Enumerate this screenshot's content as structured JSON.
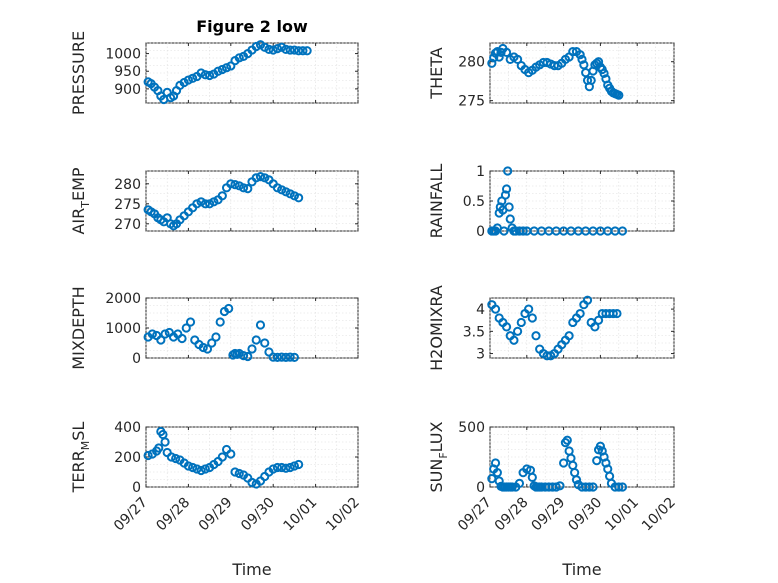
{
  "chart_data": [
    {
      "type": "scatter",
      "title": "Figure 2 low",
      "xlabel": "",
      "ylabel": "PRESSURE",
      "xlim": [
        "09/27",
        "10/02"
      ],
      "ylim": [
        860,
        1030
      ],
      "yticks": [
        "900",
        "950",
        "1000"
      ],
      "xticks": [
        "09/27",
        "09/28",
        "09/29",
        "09/30",
        "10/01",
        "10/02"
      ],
      "grid": true,
      "marker": "circle",
      "color": "#0072bd",
      "series": [
        {
          "name": "PRESSURE",
          "days": [
            0.05,
            0.12,
            0.2,
            0.28,
            0.35,
            0.42,
            0.5,
            0.58,
            0.65,
            0.72,
            0.8,
            0.9,
            1.0,
            1.1,
            1.2,
            1.3,
            1.4,
            1.5,
            1.6,
            1.7,
            1.8,
            1.9,
            2.0,
            2.1,
            2.2,
            2.3,
            2.4,
            2.5,
            2.6,
            2.7,
            2.8,
            2.9,
            3.0,
            3.1,
            3.2,
            3.3,
            3.4,
            3.5,
            3.6,
            3.7,
            3.8
          ],
          "values": [
            920,
            915,
            905,
            895,
            880,
            870,
            890,
            875,
            880,
            895,
            910,
            918,
            925,
            930,
            935,
            945,
            940,
            938,
            942,
            950,
            955,
            960,
            965,
            980,
            988,
            992,
            1000,
            1010,
            1020,
            1025,
            1018,
            1012,
            1010,
            1014,
            1018,
            1012,
            1010,
            1010,
            1008,
            1008,
            1008
          ]
        }
      ]
    },
    {
      "type": "scatter",
      "title": "",
      "xlabel": "",
      "ylabel": "THETA",
      "xlim": [
        "09/27",
        "10/02"
      ],
      "ylim": [
        274.7,
        282.4
      ],
      "yticks": [
        "275",
        "280"
      ],
      "xticks": [
        "09/27",
        "09/28",
        "09/29",
        "09/30",
        "10/01",
        "10/02"
      ],
      "grid": true,
      "marker": "circle",
      "color": "#0072bd",
      "series": [
        {
          "name": "THETA",
          "days": [
            0.05,
            0.1,
            0.15,
            0.2,
            0.25,
            0.3,
            0.35,
            0.45,
            0.55,
            0.65,
            0.75,
            0.85,
            0.95,
            1.05,
            1.15,
            1.25,
            1.35,
            1.45,
            1.55,
            1.65,
            1.75,
            1.85,
            1.95,
            2.05,
            2.15,
            2.25,
            2.35,
            2.45,
            2.5,
            2.55,
            2.6,
            2.65,
            2.7,
            2.75,
            2.8,
            2.85,
            2.9,
            2.95,
            3.0,
            3.05,
            3.1,
            3.15,
            3.2,
            3.25,
            3.3,
            3.35,
            3.4,
            3.45,
            3.5
          ],
          "values": [
            279.8,
            280.5,
            281.1,
            281.3,
            280.6,
            281.2,
            281.7,
            281.2,
            280.3,
            280.6,
            280.3,
            279.5,
            279.0,
            278.6,
            278.9,
            279.3,
            279.6,
            279.9,
            279.9,
            279.7,
            279.5,
            279.5,
            279.8,
            280.3,
            280.6,
            281.3,
            281.3,
            280.9,
            280.3,
            279.6,
            278.6,
            277.6,
            276.8,
            277.6,
            278.8,
            279.6,
            279.8,
            280.0,
            279.3,
            279.0,
            278.5,
            277.8,
            277.0,
            276.6,
            276.2,
            276.0,
            275.9,
            275.8,
            275.7
          ]
        }
      ]
    },
    {
      "type": "scatter",
      "title": "",
      "xlabel": "",
      "ylabel": "AIR",
      "ylabel_sub": "T",
      "ylabel_tail": "EMP",
      "xlim": [
        "09/27",
        "10/02"
      ],
      "ylim": [
        268.2,
        283.2
      ],
      "yticks": [
        "270",
        "275",
        "280"
      ],
      "xticks": [
        "09/27",
        "09/28",
        "09/29",
        "09/30",
        "10/01",
        "10/02"
      ],
      "grid": true,
      "marker": "circle",
      "color": "#0072bd",
      "series": [
        {
          "name": "AIR_TEMP",
          "days": [
            0.05,
            0.12,
            0.2,
            0.28,
            0.35,
            0.42,
            0.5,
            0.58,
            0.65,
            0.72,
            0.8,
            0.9,
            1.0,
            1.1,
            1.2,
            1.3,
            1.4,
            1.5,
            1.6,
            1.7,
            1.8,
            1.9,
            2.0,
            2.1,
            2.2,
            2.3,
            2.4,
            2.5,
            2.6,
            2.7,
            2.8,
            2.9,
            3.0,
            3.1,
            3.2,
            3.3,
            3.4,
            3.5,
            3.6
          ],
          "values": [
            273.5,
            273.0,
            272.5,
            271.5,
            271.0,
            270.5,
            271.5,
            270.0,
            269.5,
            270.0,
            271.0,
            272.0,
            273.0,
            274.0,
            275.0,
            275.5,
            275.0,
            275.0,
            275.5,
            276.0,
            277.0,
            279.0,
            280.0,
            279.8,
            279.5,
            279.0,
            278.8,
            280.5,
            281.5,
            281.8,
            281.5,
            281.0,
            280.0,
            279.0,
            278.5,
            278.0,
            277.5,
            277.0,
            276.5
          ]
        }
      ]
    },
    {
      "type": "scatter",
      "title": "",
      "xlabel": "",
      "ylabel": "RAINFALL",
      "xlim": [
        "09/27",
        "10/02"
      ],
      "ylim": [
        0,
        1
      ],
      "yticks": [
        "0",
        "0.5",
        "1"
      ],
      "xticks": [
        "09/27",
        "09/28",
        "09/29",
        "09/30",
        "10/01",
        "10/02"
      ],
      "grid": true,
      "marker": "circle",
      "color": "#0072bd",
      "series": [
        {
          "name": "RAINFALL",
          "days": [
            0.05,
            0.1,
            0.15,
            0.2,
            0.25,
            0.28,
            0.32,
            0.35,
            0.38,
            0.42,
            0.45,
            0.48,
            0.52,
            0.55,
            0.6,
            0.65,
            0.7,
            0.8,
            0.9,
            1.0,
            1.2,
            1.4,
            1.6,
            1.8,
            2.0,
            2.2,
            2.4,
            2.6,
            2.8,
            3.0,
            3.2,
            3.4,
            3.6
          ],
          "values": [
            0,
            0,
            0,
            0.05,
            0.3,
            0.4,
            0.5,
            0.35,
            0.0,
            0.6,
            0.7,
            1.0,
            0.4,
            0.2,
            0.05,
            0,
            0,
            0,
            0,
            0,
            0,
            0,
            0,
            0,
            0,
            0,
            0,
            0,
            0,
            0,
            0,
            0,
            0
          ]
        }
      ]
    },
    {
      "type": "scatter",
      "title": "",
      "xlabel": "",
      "ylabel": "MIXDEPTH",
      "xlim": [
        "09/27",
        "10/02"
      ],
      "ylim": [
        0,
        2000
      ],
      "yticks": [
        "0",
        "1000",
        "2000"
      ],
      "xticks": [
        "09/27",
        "09/28",
        "09/29",
        "09/30",
        "10/01",
        "10/02"
      ],
      "grid": true,
      "marker": "circle",
      "color": "#0072bd",
      "series": [
        {
          "name": "MIXDEPTH",
          "days": [
            0.05,
            0.15,
            0.25,
            0.35,
            0.45,
            0.55,
            0.65,
            0.75,
            0.85,
            0.95,
            1.05,
            1.15,
            1.25,
            1.35,
            1.45,
            1.55,
            1.65,
            1.75,
            1.85,
            1.95,
            2.05,
            2.1,
            2.15,
            2.2,
            2.3,
            2.4,
            2.5,
            2.6,
            2.7,
            2.8,
            2.9,
            3.0,
            3.1,
            3.2,
            3.3,
            3.4,
            3.5
          ],
          "values": [
            700,
            800,
            750,
            600,
            800,
            850,
            700,
            800,
            650,
            1000,
            1200,
            600,
            450,
            350,
            300,
            500,
            700,
            1200,
            1550,
            1650,
            100,
            150,
            120,
            150,
            80,
            50,
            300,
            600,
            1100,
            500,
            200,
            30,
            20,
            30,
            20,
            30,
            20
          ]
        }
      ]
    },
    {
      "type": "scatter",
      "title": "",
      "xlabel": "",
      "ylabel": "H2OMIXRA",
      "xlim": [
        "09/27",
        "10/02"
      ],
      "ylim": [
        2.9,
        4.25
      ],
      "yticks": [
        "3",
        "3.5",
        "4"
      ],
      "xticks": [
        "09/27",
        "09/28",
        "09/29",
        "09/30",
        "10/01",
        "10/02"
      ],
      "grid": true,
      "marker": "circle",
      "color": "#0072bd",
      "series": [
        {
          "name": "H2OMIXRA",
          "days": [
            0.05,
            0.15,
            0.25,
            0.35,
            0.45,
            0.55,
            0.65,
            0.75,
            0.85,
            0.95,
            1.05,
            1.15,
            1.25,
            1.35,
            1.45,
            1.55,
            1.65,
            1.75,
            1.85,
            1.95,
            2.05,
            2.15,
            2.25,
            2.35,
            2.45,
            2.55,
            2.65,
            2.75,
            2.85,
            2.95,
            3.05,
            3.15,
            3.25,
            3.35,
            3.45
          ],
          "values": [
            4.1,
            4.0,
            3.8,
            3.7,
            3.6,
            3.4,
            3.3,
            3.5,
            3.7,
            3.9,
            4.0,
            3.8,
            3.4,
            3.1,
            3.0,
            2.95,
            2.95,
            3.0,
            3.1,
            3.2,
            3.3,
            3.4,
            3.7,
            3.8,
            3.9,
            4.1,
            4.2,
            3.7,
            3.6,
            3.75,
            3.9,
            3.9,
            3.9,
            3.9,
            3.9
          ]
        }
      ]
    },
    {
      "type": "scatter",
      "title": "",
      "xlabel": "Time",
      "ylabel": "TERR",
      "ylabel_sub": "M",
      "ylabel_tail": "SL",
      "xlim": [
        "09/27",
        "10/02"
      ],
      "ylim": [
        0,
        400
      ],
      "yticks": [
        "0",
        "200",
        "400"
      ],
      "xticks": [
        "09/27",
        "09/28",
        "09/29",
        "09/30",
        "10/01",
        "10/02"
      ],
      "grid": true,
      "marker": "circle",
      "color": "#0072bd",
      "series": [
        {
          "name": "TERR_MSL",
          "days": [
            0.05,
            0.15,
            0.25,
            0.3,
            0.35,
            0.4,
            0.45,
            0.5,
            0.6,
            0.7,
            0.8,
            0.9,
            1.0,
            1.1,
            1.2,
            1.3,
            1.4,
            1.5,
            1.6,
            1.7,
            1.8,
            1.9,
            2.0,
            2.1,
            2.2,
            2.3,
            2.4,
            2.5,
            2.6,
            2.7,
            2.8,
            2.9,
            3.0,
            3.1,
            3.2,
            3.3,
            3.4,
            3.5,
            3.6
          ],
          "values": [
            210,
            220,
            240,
            260,
            370,
            350,
            300,
            230,
            200,
            190,
            180,
            160,
            140,
            130,
            120,
            110,
            120,
            130,
            150,
            170,
            200,
            250,
            220,
            100,
            90,
            80,
            60,
            30,
            20,
            40,
            70,
            100,
            120,
            130,
            130,
            125,
            130,
            140,
            150
          ]
        }
      ]
    },
    {
      "type": "scatter",
      "title": "",
      "xlabel": "Time",
      "ylabel": "SUN",
      "ylabel_sub": "F",
      "ylabel_tail": "LUX",
      "xlim": [
        "09/27",
        "10/02"
      ],
      "ylim": [
        0,
        500
      ],
      "yticks": [
        "0",
        "500"
      ],
      "xticks": [
        "09/27",
        "09/28",
        "09/29",
        "09/30",
        "10/01",
        "10/02"
      ],
      "grid": true,
      "marker": "circle",
      "color": "#0072bd",
      "series": [
        {
          "name": "SUN_FLUX",
          "days": [
            0.05,
            0.1,
            0.15,
            0.2,
            0.25,
            0.3,
            0.35,
            0.4,
            0.45,
            0.5,
            0.55,
            0.6,
            0.7,
            0.8,
            0.9,
            1.0,
            1.1,
            1.15,
            1.2,
            1.25,
            1.3,
            1.35,
            1.4,
            1.5,
            1.6,
            1.7,
            1.8,
            1.9,
            2.0,
            2.05,
            2.1,
            2.15,
            2.2,
            2.25,
            2.3,
            2.35,
            2.4,
            2.5,
            2.6,
            2.7,
            2.8,
            2.9,
            2.95,
            3.0,
            3.05,
            3.1,
            3.15,
            3.2,
            3.25,
            3.3,
            3.4,
            3.5,
            3.6
          ],
          "values": [
            70,
            150,
            200,
            120,
            50,
            5,
            0,
            0,
            0,
            0,
            0,
            0,
            0,
            30,
            120,
            150,
            140,
            80,
            10,
            0,
            0,
            0,
            0,
            0,
            0,
            0,
            0,
            10,
            200,
            370,
            390,
            300,
            240,
            180,
            120,
            60,
            20,
            0,
            0,
            0,
            0,
            220,
            310,
            340,
            300,
            250,
            200,
            150,
            90,
            30,
            0,
            0,
            0
          ]
        }
      ]
    }
  ]
}
